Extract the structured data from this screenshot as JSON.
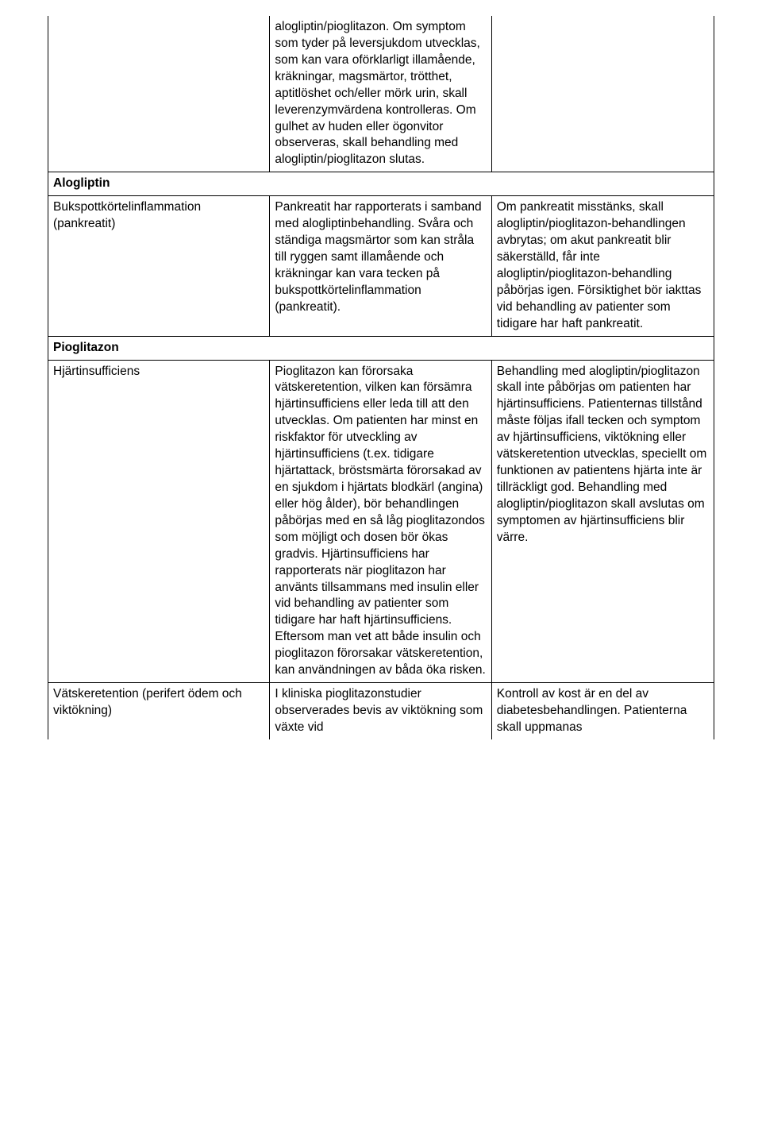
{
  "table": {
    "border_color": "#000000",
    "background_color": "#ffffff",
    "font_family": "Arial",
    "font_size_pt": 12,
    "line_height": 1.35,
    "columns_width_pct": [
      33.3,
      33.3,
      33.4
    ],
    "rows": [
      {
        "c1": "",
        "c2": "alogliptin/pioglitazon. Om symptom som tyder på leversjukdom utvecklas, som kan vara oförklarligt illamående, kräkningar, magsmärtor, trötthet, aptitlöshet och/eller mörk urin, skall leverenzymvärdena kontrolleras. Om gulhet av huden eller ögonvitor observeras, skall behandling med alogliptin/pioglitazon slutas.",
        "c3": ""
      }
    ],
    "section1": "Alogliptin",
    "row2": {
      "c1": "Bukspottkörtelinflammation (pankreatit)",
      "c2": "Pankreatit har rapporterats i samband med alogliptinbehandling. Svåra och ständiga magsmärtor som kan stråla till ryggen samt illamående och kräkningar kan vara tecken på bukspottkörtelinflammation (pankreatit).",
      "c3": "Om pankreatit misstänks, skall alogliptin/pioglitazon-behandlingen avbrytas; om akut pankreatit blir säkerställd, får inte alogliptin/pioglitazon-behandling påbörjas igen. Försiktighet bör iakttas vid behandling av patienter som tidigare har haft pankreatit."
    },
    "section2": "Pioglitazon",
    "row3": {
      "c1": "Hjärtinsufficiens",
      "c2": "Pioglitazon kan förorsaka vätskeretention, vilken kan försämra hjärtinsufficiens eller leda till att den utvecklas. Om patienten har minst en riskfaktor för utveckling av hjärtinsufficiens (t.ex. tidigare hjärtattack, bröstsmärta förorsakad av en sjukdom i hjärtats blodkärl (angina) eller hög ålder), bör behandlingen påbörjas med en så låg pioglitazondos som möjligt och dosen bör ökas gradvis. Hjärtinsufficiens har rapporterats när pioglitazon har använts tillsammans med insulin eller vid behandling av patienter som tidigare har haft hjärtinsufficiens. Eftersom man vet att både insulin och pioglitazon förorsakar vätskeretention, kan användningen av båda öka risken.",
      "c3": "Behandling med alogliptin/pioglitazon skall inte påbörjas om patienten har hjärtinsufficiens. Patienternas tillstånd måste följas ifall tecken och symptom av hjärtinsufficiens, viktökning eller vätskeretention utvecklas, speciellt om funktionen av patientens hjärta inte är tillräckligt god. Behandling med alogliptin/pioglitazon skall avslutas om symptomen av hjärtinsufficiens blir värre."
    },
    "row4": {
      "c1": "Vätskeretention (perifert ödem och viktökning)",
      "c2": "I kliniska pioglitazonstudier observerades bevis av viktökning som växte vid",
      "c3": "Kontroll av kost är en del av diabetesbehandlingen. Patienterna skall uppmanas"
    }
  }
}
